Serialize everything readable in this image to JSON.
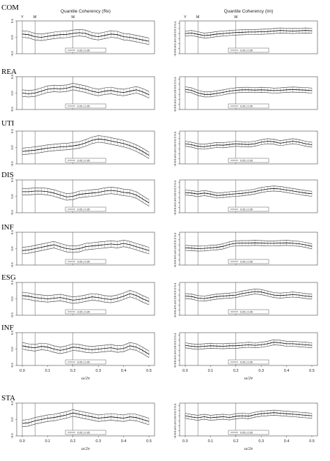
{
  "figure": {
    "top_markers": [
      "Y",
      "M",
      "W"
    ],
    "x_axis_label": "ω/2π",
    "legend_text": "0.05 | 0.95",
    "column_titles": [
      "Quantile Coherency (Re)",
      "Quantile Coherency (Im)"
    ]
  },
  "chart_data": [
    {
      "type": "line",
      "row_label": "COM",
      "panel": "Re",
      "ylim": [
        -0.5,
        0.5
      ],
      "yticks": [
        "0.5",
        "0.0",
        "-0.5"
      ],
      "x": [
        0,
        0.025,
        0.05,
        0.075,
        0.1,
        0.125,
        0.15,
        0.175,
        0.2,
        0.225,
        0.25,
        0.275,
        0.3,
        0.325,
        0.35,
        0.375,
        0.4,
        0.425,
        0.45,
        0.475,
        0.5
      ],
      "values": [
        0.1,
        0.08,
        0.02,
        0.0,
        0.03,
        0.06,
        0.08,
        0.09,
        0.12,
        0.14,
        0.12,
        0.05,
        0.02,
        0.06,
        0.1,
        0.08,
        0.02,
        0.0,
        -0.04,
        -0.08,
        -0.12
      ],
      "band": 0.1
    },
    {
      "type": "line",
      "row_label": "COM",
      "panel": "Im",
      "ylim": [
        -0.8,
        0.5
      ],
      "yticks": [
        "0.4",
        "0.2",
        "0.0",
        "-0.2",
        "-0.4",
        "-0.6",
        "-0.8"
      ],
      "x": [
        0,
        0.025,
        0.05,
        0.075,
        0.1,
        0.125,
        0.15,
        0.175,
        0.2,
        0.225,
        0.25,
        0.275,
        0.3,
        0.325,
        0.35,
        0.375,
        0.4,
        0.425,
        0.45,
        0.475,
        0.5
      ],
      "values": [
        0.0,
        0.02,
        -0.03,
        -0.08,
        -0.06,
        -0.02,
        0.0,
        0.02,
        0.04,
        0.05,
        0.06,
        0.06,
        0.07,
        0.08,
        0.1,
        0.12,
        0.11,
        0.1,
        0.11,
        0.12,
        0.11
      ],
      "band": 0.1
    },
    {
      "type": "line",
      "row_label": "REA",
      "panel": "Re",
      "ylim": [
        -0.5,
        0.5
      ],
      "yticks": [
        "0.5",
        "0.0",
        "-0.5"
      ],
      "x": [
        0,
        0.025,
        0.05,
        0.075,
        0.1,
        0.125,
        0.15,
        0.175,
        0.2,
        0.225,
        0.25,
        0.275,
        0.3,
        0.325,
        0.35,
        0.375,
        0.4,
        0.425,
        0.45,
        0.475,
        0.5
      ],
      "values": [
        0.0,
        -0.02,
        0.0,
        0.06,
        0.12,
        0.14,
        0.13,
        0.15,
        0.2,
        0.16,
        0.12,
        0.06,
        0.02,
        0.06,
        0.08,
        0.04,
        0.02,
        0.06,
        0.1,
        0.04,
        -0.05
      ],
      "band": 0.1
    },
    {
      "type": "line",
      "row_label": "REA",
      "panel": "Im",
      "ylim": [
        -0.8,
        0.5
      ],
      "yticks": [
        "0.4",
        "0.2",
        "0.0",
        "-0.2",
        "-0.4",
        "-0.6",
        "-0.8"
      ],
      "x": [
        0,
        0.025,
        0.05,
        0.075,
        0.1,
        0.125,
        0.15,
        0.175,
        0.2,
        0.225,
        0.25,
        0.275,
        0.3,
        0.325,
        0.35,
        0.375,
        0.4,
        0.425,
        0.45,
        0.475,
        0.5
      ],
      "values": [
        0.0,
        -0.04,
        -0.14,
        -0.2,
        -0.2,
        -0.16,
        -0.12,
        -0.07,
        -0.04,
        -0.02,
        -0.02,
        -0.03,
        -0.02,
        -0.03,
        -0.05,
        -0.04,
        -0.02,
        -0.01,
        -0.02,
        -0.03,
        -0.05
      ],
      "band": 0.1
    },
    {
      "type": "line",
      "row_label": "UTI",
      "panel": "Re",
      "ylim": [
        -0.5,
        0.5
      ],
      "yticks": [
        "0.5",
        "0.0",
        "-0.5"
      ],
      "x": [
        0,
        0.025,
        0.05,
        0.075,
        0.1,
        0.125,
        0.15,
        0.175,
        0.2,
        0.225,
        0.25,
        0.275,
        0.3,
        0.325,
        0.35,
        0.375,
        0.4,
        0.425,
        0.45,
        0.475,
        0.5
      ],
      "values": [
        -0.12,
        -0.1,
        -0.08,
        -0.05,
        -0.02,
        0.0,
        0.02,
        0.03,
        0.05,
        0.08,
        0.14,
        0.22,
        0.26,
        0.24,
        0.2,
        0.16,
        0.12,
        0.06,
        -0.02,
        -0.12,
        -0.24
      ],
      "band": 0.1
    },
    {
      "type": "line",
      "row_label": "UTI",
      "panel": "Im",
      "ylim": [
        -0.8,
        0.5
      ],
      "yticks": [
        "0.4",
        "0.2",
        "0.0",
        "-0.2",
        "-0.4",
        "-0.6",
        "-0.8"
      ],
      "x": [
        0,
        0.025,
        0.05,
        0.075,
        0.1,
        0.125,
        0.15,
        0.175,
        0.2,
        0.225,
        0.25,
        0.275,
        0.3,
        0.325,
        0.35,
        0.375,
        0.4,
        0.425,
        0.45,
        0.475,
        0.5
      ],
      "values": [
        0.0,
        -0.04,
        -0.1,
        -0.12,
        -0.08,
        -0.05,
        -0.06,
        -0.03,
        0.0,
        -0.02,
        -0.03,
        0.0,
        0.06,
        0.1,
        0.08,
        0.02,
        0.06,
        0.1,
        0.06,
        0.0,
        -0.04
      ],
      "band": 0.1
    },
    {
      "type": "line",
      "row_label": "DIS",
      "panel": "Re",
      "ylim": [
        -0.5,
        0.5
      ],
      "yticks": [
        "0.5",
        "0.0",
        "-0.5"
      ],
      "x": [
        0,
        0.025,
        0.05,
        0.075,
        0.1,
        0.125,
        0.15,
        0.175,
        0.2,
        0.225,
        0.25,
        0.275,
        0.3,
        0.325,
        0.35,
        0.375,
        0.4,
        0.425,
        0.45,
        0.475,
        0.5
      ],
      "values": [
        0.14,
        0.14,
        0.16,
        0.16,
        0.14,
        0.1,
        0.04,
        -0.02,
        0.0,
        0.06,
        0.08,
        0.1,
        0.12,
        0.16,
        0.18,
        0.16,
        0.12,
        0.1,
        0.04,
        -0.08,
        -0.2
      ],
      "band": 0.1
    },
    {
      "type": "line",
      "row_label": "DIS",
      "panel": "Im",
      "ylim": [
        -0.8,
        0.5
      ],
      "yticks": [
        "0.4",
        "0.2",
        "0.0",
        "-0.2",
        "-0.4",
        "-0.6",
        "-0.8"
      ],
      "x": [
        0,
        0.025,
        0.05,
        0.075,
        0.1,
        0.125,
        0.15,
        0.175,
        0.2,
        0.225,
        0.25,
        0.275,
        0.3,
        0.325,
        0.35,
        0.375,
        0.4,
        0.425,
        0.45,
        0.475,
        0.5
      ],
      "values": [
        0.0,
        -0.02,
        -0.06,
        -0.02,
        -0.06,
        -0.12,
        -0.1,
        -0.07,
        -0.05,
        -0.03,
        0.0,
        0.04,
        0.1,
        0.14,
        0.16,
        0.14,
        0.1,
        0.06,
        0.02,
        -0.02,
        -0.05
      ],
      "band": 0.1
    },
    {
      "type": "line",
      "row_label": "INF",
      "panel": "Re",
      "ylim": [
        -0.5,
        0.5
      ],
      "yticks": [
        "0.5",
        "0.0",
        "-0.5"
      ],
      "x": [
        0,
        0.025,
        0.05,
        0.075,
        0.1,
        0.125,
        0.15,
        0.175,
        0.2,
        0.225,
        0.25,
        0.275,
        0.3,
        0.325,
        0.35,
        0.375,
        0.4,
        0.425,
        0.45,
        0.475,
        0.5
      ],
      "values": [
        -0.06,
        -0.04,
        0.0,
        0.04,
        0.08,
        0.12,
        0.06,
        0.0,
        -0.02,
        0.0,
        0.06,
        0.08,
        0.1,
        0.12,
        0.14,
        0.12,
        0.16,
        0.12,
        0.06,
        0.0,
        -0.06
      ],
      "band": 0.1
    },
    {
      "type": "line",
      "row_label": "INF",
      "panel": "Im",
      "ylim": [
        -0.8,
        0.5
      ],
      "yticks": [
        "0.4",
        "0.2",
        "0.0",
        "-0.2",
        "-0.4",
        "-0.6",
        "-0.8"
      ],
      "x": [
        0,
        0.025,
        0.05,
        0.075,
        0.1,
        0.125,
        0.15,
        0.175,
        0.2,
        0.225,
        0.25,
        0.275,
        0.3,
        0.325,
        0.35,
        0.375,
        0.4,
        0.425,
        0.45,
        0.475,
        0.5
      ],
      "values": [
        -0.12,
        -0.13,
        -0.15,
        -0.14,
        -0.12,
        -0.1,
        -0.06,
        0.02,
        0.06,
        0.07,
        0.07,
        0.08,
        0.07,
        0.06,
        0.06,
        0.07,
        0.08,
        0.06,
        0.04,
        0.0,
        -0.06
      ],
      "band": 0.1
    },
    {
      "type": "line",
      "row_label": "ESG",
      "panel": "Re",
      "ylim": [
        -0.5,
        0.5
      ],
      "yticks": [
        "0.5",
        "0.0",
        "-0.5"
      ],
      "x": [
        0,
        0.025,
        0.05,
        0.075,
        0.1,
        0.125,
        0.15,
        0.175,
        0.2,
        0.225,
        0.25,
        0.275,
        0.3,
        0.325,
        0.35,
        0.375,
        0.4,
        0.425,
        0.45,
        0.475,
        0.5
      ],
      "values": [
        0.1,
        0.08,
        0.04,
        0.02,
        0.0,
        0.02,
        0.04,
        0.0,
        -0.04,
        -0.02,
        0.02,
        0.06,
        0.04,
        0.0,
        -0.02,
        0.02,
        0.08,
        0.16,
        0.1,
        0.0,
        -0.08
      ],
      "band": 0.1
    },
    {
      "type": "line",
      "row_label": "ESG",
      "panel": "Im",
      "ylim": [
        -0.8,
        0.5
      ],
      "yticks": [
        "0.4",
        "0.2",
        "0.0",
        "-0.2",
        "-0.4",
        "-0.6",
        "-0.8"
      ],
      "x": [
        0,
        0.025,
        0.05,
        0.075,
        0.1,
        0.125,
        0.15,
        0.175,
        0.2,
        0.225,
        0.25,
        0.275,
        0.3,
        0.325,
        0.35,
        0.375,
        0.4,
        0.425,
        0.45,
        0.475,
        0.5
      ],
      "values": [
        -0.04,
        -0.06,
        -0.12,
        -0.14,
        -0.1,
        -0.06,
        -0.04,
        -0.02,
        0.0,
        0.06,
        0.1,
        0.14,
        0.12,
        0.06,
        0.0,
        -0.02,
        0.0,
        0.02,
        0.0,
        -0.04,
        -0.06
      ],
      "band": 0.1
    },
    {
      "type": "line",
      "row_label": "INF",
      "panel": "Re",
      "ylim": [
        -0.5,
        0.5
      ],
      "yticks": [
        "0.5",
        "0.0",
        "-0.5"
      ],
      "x": [
        0,
        0.025,
        0.05,
        0.075,
        0.1,
        0.125,
        0.15,
        0.175,
        0.2,
        0.225,
        0.25,
        0.275,
        0.3,
        0.325,
        0.35,
        0.375,
        0.4,
        0.425,
        0.45,
        0.475,
        0.5
      ],
      "values": [
        0.1,
        0.06,
        0.04,
        0.08,
        0.06,
        0.0,
        -0.04,
        0.0,
        0.06,
        0.04,
        0.0,
        -0.02,
        0.0,
        0.02,
        0.04,
        0.0,
        0.02,
        0.1,
        0.06,
        -0.04,
        -0.16
      ],
      "band": 0.1
    },
    {
      "type": "line",
      "row_label": "INF",
      "panel": "Im",
      "ylim": [
        -0.8,
        0.5
      ],
      "yticks": [
        "0.4",
        "0.2",
        "0.0",
        "-0.2",
        "-0.4",
        "-0.6",
        "-0.8"
      ],
      "x": [
        0,
        0.025,
        0.05,
        0.075,
        0.1,
        0.125,
        0.15,
        0.175,
        0.2,
        0.225,
        0.25,
        0.275,
        0.3,
        0.325,
        0.35,
        0.375,
        0.4,
        0.425,
        0.45,
        0.475,
        0.5
      ],
      "values": [
        0.0,
        -0.04,
        -0.06,
        -0.04,
        -0.02,
        -0.03,
        -0.04,
        -0.02,
        -0.02,
        0.0,
        0.02,
        0.0,
        0.02,
        0.06,
        0.12,
        0.1,
        0.06,
        0.06,
        0.04,
        0.02,
        0.0
      ],
      "band": 0.1
    },
    {
      "type": "line",
      "row_label": "STA",
      "panel": "Re",
      "ylim": [
        -0.5,
        0.5
      ],
      "yticks": [
        "0.5",
        "0.0",
        "-0.5"
      ],
      "x": [
        0,
        0.025,
        0.05,
        0.075,
        0.1,
        0.125,
        0.15,
        0.175,
        0.2,
        0.225,
        0.25,
        0.275,
        0.3,
        0.325,
        0.35,
        0.375,
        0.4,
        0.425,
        0.45,
        0.475,
        0.5
      ],
      "values": [
        -0.12,
        -0.1,
        -0.04,
        0.0,
        0.04,
        0.06,
        0.1,
        0.14,
        0.2,
        0.16,
        0.12,
        0.08,
        0.04,
        0.06,
        0.08,
        0.06,
        0.04,
        0.08,
        0.06,
        0.0,
        -0.06
      ],
      "band": 0.1
    },
    {
      "type": "line",
      "row_label": "STA",
      "panel": "Im",
      "ylim": [
        -0.8,
        0.5
      ],
      "yticks": [
        "0.4",
        "0.2",
        "0.0",
        "-0.2",
        "-0.4",
        "-0.6",
        "-0.8"
      ],
      "x": [
        0,
        0.025,
        0.05,
        0.075,
        0.1,
        0.125,
        0.15,
        0.175,
        0.2,
        0.225,
        0.25,
        0.275,
        0.3,
        0.325,
        0.35,
        0.375,
        0.4,
        0.425,
        0.45,
        0.475,
        0.5
      ],
      "values": [
        0.0,
        -0.05,
        -0.08,
        -0.04,
        -0.08,
        -0.06,
        -0.04,
        -0.07,
        -0.02,
        0.0,
        -0.02,
        0.04,
        0.08,
        0.1,
        0.12,
        0.1,
        0.08,
        0.06,
        0.04,
        0.02,
        0.0
      ],
      "band": 0.1
    }
  ],
  "x_axis": {
    "ticks": [
      "0.0",
      "0.1",
      "0.2",
      "0.3",
      "0.4",
      "0.5"
    ]
  }
}
